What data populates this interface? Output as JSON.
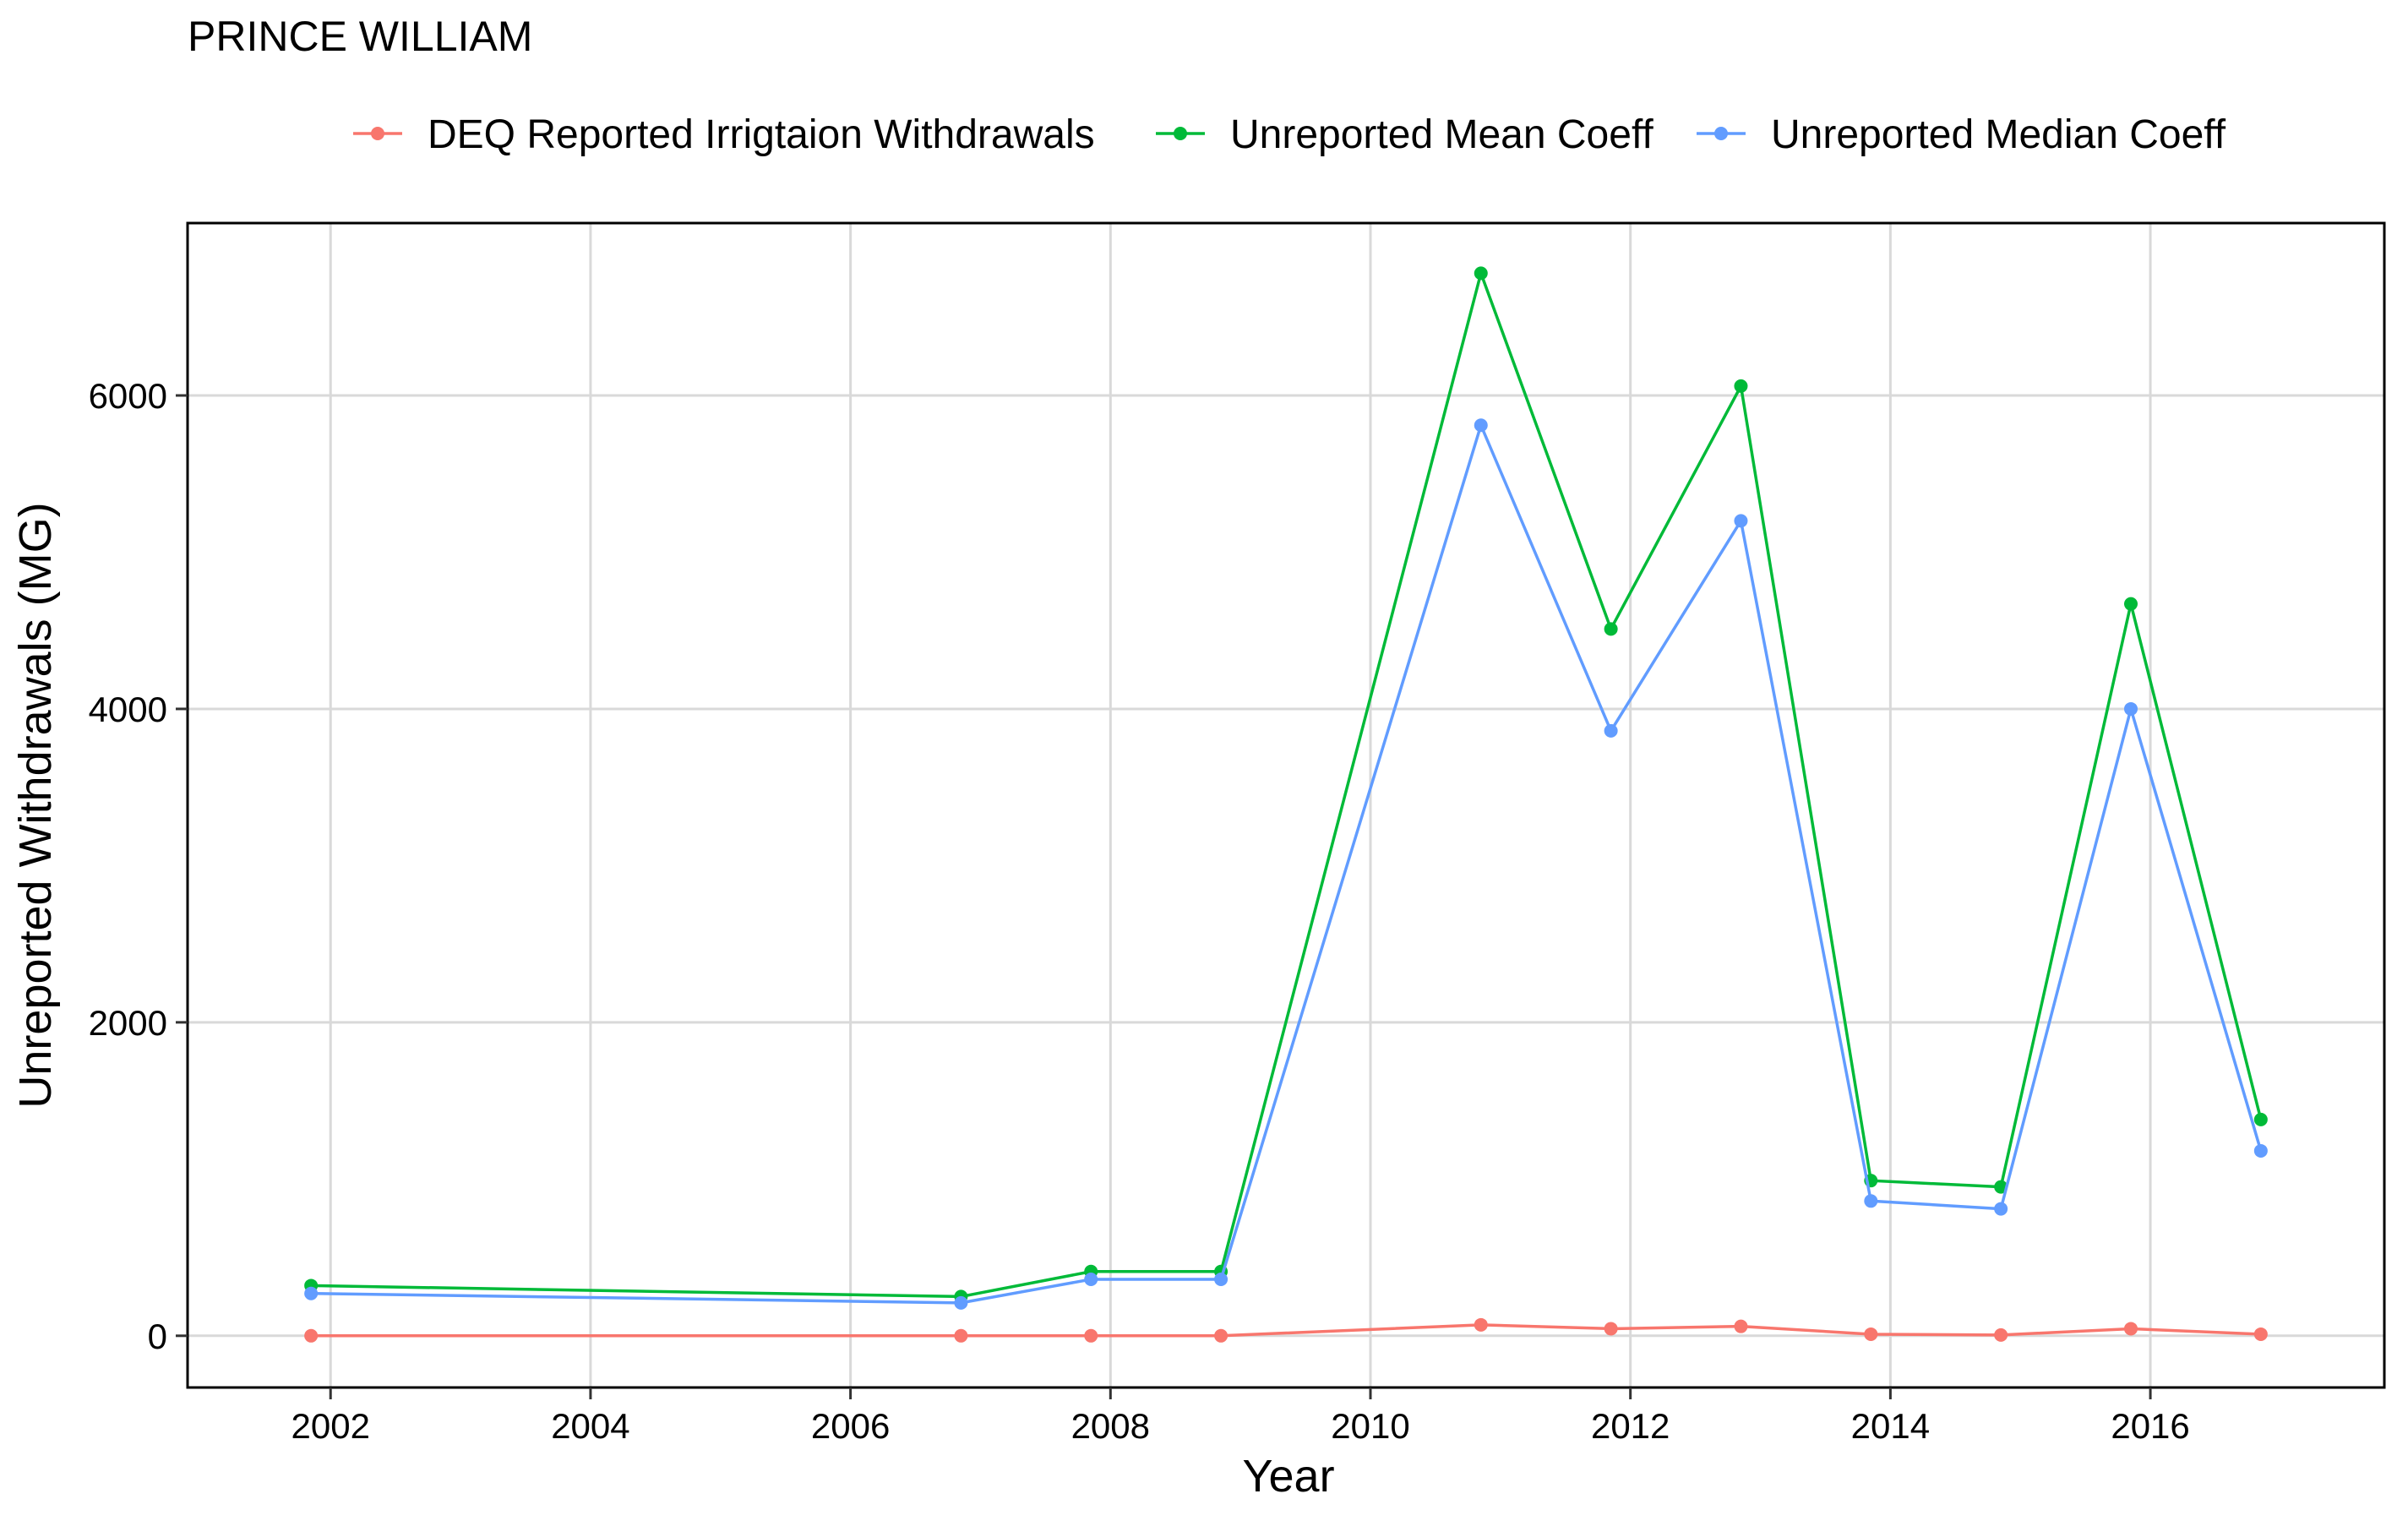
{
  "chart_data": {
    "type": "line",
    "title": "PRINCE WILLIAM",
    "xlabel": "Year",
    "ylabel": "Unreported Withdrawals (MG)",
    "xlim": [
      2000.9,
      2017.8
    ],
    "ylim": [
      -330,
      7100
    ],
    "x_ticks": [
      2002,
      2004,
      2006,
      2008,
      2010,
      2012,
      2014,
      2016
    ],
    "y_ticks": [
      0,
      2000,
      4000,
      6000
    ],
    "grid": true,
    "legend_position": "top",
    "series": [
      {
        "name": "DEQ Reported Irrigtaion Withdrawals",
        "color": "#F8766D",
        "x": [
          2001.85,
          2006.85,
          2007.85,
          2008.85,
          2010.85,
          2011.85,
          2012.85,
          2013.85,
          2014.85,
          2015.85,
          2016.85
        ],
        "y": [
          0,
          0,
          0,
          0,
          70,
          45,
          60,
          10,
          5,
          45,
          10
        ]
      },
      {
        "name": "Unreported Mean Coeff",
        "color": "#00BA38",
        "x": [
          2001.85,
          2006.85,
          2007.85,
          2008.85,
          2010.85,
          2011.85,
          2012.85,
          2013.85,
          2014.85,
          2015.85,
          2016.85
        ],
        "y": [
          320,
          250,
          410,
          410,
          6780,
          4510,
          6060,
          990,
          950,
          4670,
          1380
        ]
      },
      {
        "name": "Unreported Median Coeff",
        "color": "#619CFF",
        "x": [
          2001.85,
          2006.85,
          2007.85,
          2008.85,
          2010.85,
          2011.85,
          2012.85,
          2013.85,
          2014.85,
          2015.85,
          2016.85
        ],
        "y": [
          270,
          210,
          360,
          360,
          5810,
          3860,
          5200,
          860,
          810,
          4000,
          1180
        ]
      }
    ]
  }
}
